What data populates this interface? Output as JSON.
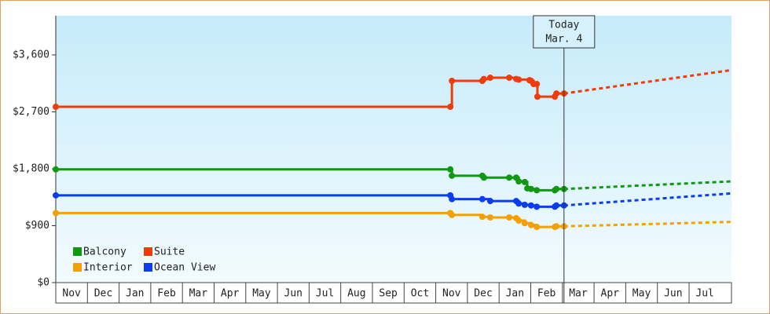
{
  "chart_data": {
    "type": "line",
    "step": true,
    "ylim": [
      0,
      4220
    ],
    "yticks": [
      {
        "value": 0,
        "label": "$0"
      },
      {
        "value": 900,
        "label": "$900"
      },
      {
        "value": 1800,
        "label": "$1,800"
      },
      {
        "value": 2700,
        "label": "$2,700"
      },
      {
        "value": 3600,
        "label": "$3,600"
      }
    ],
    "xlim": [
      0,
      21.34
    ],
    "categories": [
      "Nov",
      "Dec",
      "Jan",
      "Feb",
      "Mar",
      "Apr",
      "May",
      "Jun",
      "Jul",
      "Aug",
      "Sep",
      "Oct",
      "Nov",
      "Dec",
      "Jan",
      "Feb",
      "Mar",
      "Apr",
      "May",
      "Jun",
      "Jul"
    ],
    "annotation": {
      "lines": [
        "Today",
        "Mar. 4"
      ],
      "x": 16.05
    },
    "legend": "lower-left",
    "series": [
      {
        "name": "Balcony",
        "color": "#109910",
        "x": [
          0,
          12.46,
          12.51,
          13.47,
          13.52,
          14.32,
          14.54,
          14.62,
          14.81,
          14.89,
          15.01,
          15.19,
          15.76,
          15.81,
          16.05
        ],
        "values": [
          1790,
          1790,
          1690,
          1690,
          1660,
          1660,
          1660,
          1600,
          1590,
          1490,
          1480,
          1460,
          1460,
          1480,
          1480
        ],
        "forecast_x": [
          16.05,
          21.34
        ],
        "forecast_values": [
          1480,
          1600
        ]
      },
      {
        "name": "Suite",
        "color": "#f03c0a",
        "x": [
          0,
          12.46,
          12.51,
          13.47,
          13.52,
          13.72,
          14.32,
          14.54,
          14.62,
          14.96,
          15.01,
          15.09,
          15.19,
          15.21,
          15.76,
          15.81,
          16.05
        ],
        "values": [
          2780,
          2780,
          3190,
          3190,
          3220,
          3240,
          3240,
          3220,
          3210,
          3200,
          3190,
          3140,
          3140,
          2940,
          2940,
          2990,
          2990
        ],
        "forecast_x": [
          16.05,
          21.34
        ],
        "forecast_values": [
          2990,
          3360
        ]
      },
      {
        "name": "Interior",
        "color": "#f5a000",
        "x": [
          0,
          12.46,
          12.51,
          13.47,
          13.72,
          14.32,
          14.54,
          14.62,
          14.81,
          15.01,
          15.19,
          15.76,
          15.81,
          16.05
        ],
        "values": [
          1100,
          1100,
          1070,
          1040,
          1030,
          1030,
          1020,
          980,
          940,
          910,
          880,
          880,
          890,
          890
        ],
        "forecast_x": [
          16.05,
          21.34
        ],
        "forecast_values": [
          890,
          960
        ]
      },
      {
        "name": "Ocean View",
        "color": "#0a3cf0",
        "x": [
          0,
          12.46,
          12.51,
          13.47,
          13.72,
          14.54,
          14.62,
          14.81,
          15.01,
          15.19,
          15.76,
          15.81,
          16.05
        ],
        "values": [
          1380,
          1380,
          1320,
          1320,
          1290,
          1290,
          1250,
          1230,
          1220,
          1200,
          1200,
          1220,
          1220
        ],
        "forecast_x": [
          16.05,
          21.34
        ],
        "forecast_values": [
          1220,
          1410
        ]
      }
    ]
  }
}
